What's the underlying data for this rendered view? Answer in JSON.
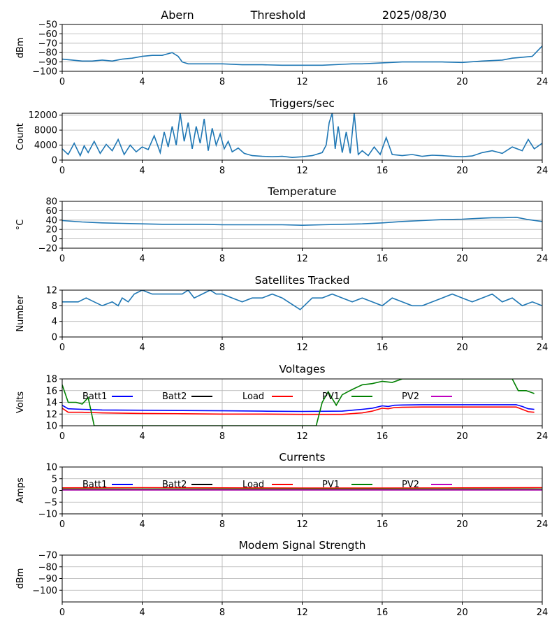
{
  "header": {
    "station": "Abern",
    "label": "Threshold",
    "date": "2025/08/30"
  },
  "chart_data": [
    {
      "type": "line",
      "title": "",
      "ylabel": "dBm",
      "xlim": [
        0,
        24
      ],
      "xticks": [
        0,
        4,
        8,
        12,
        16,
        20,
        24
      ],
      "ylim": [
        -100,
        -50
      ],
      "yticks": [
        -100,
        -90,
        -80,
        -70,
        -60,
        -50
      ],
      "grid": true,
      "series": [
        {
          "name": "",
          "color": "#1f77b4",
          "x": [
            0,
            0.5,
            1,
            1.5,
            2,
            2.5,
            3,
            3.5,
            4,
            4.5,
            5,
            5.5,
            5.8,
            6,
            6.3,
            7,
            7.5,
            8,
            9,
            10,
            11,
            12,
            13,
            14,
            14.5,
            15,
            16,
            17,
            18,
            19,
            20,
            21,
            22,
            22.5,
            23,
            23.5,
            24
          ],
          "y": [
            -87,
            -88,
            -89,
            -89,
            -88,
            -89,
            -87,
            -86,
            -84,
            -83,
            -83,
            -80,
            -84,
            -90,
            -92,
            -92,
            -92,
            -92,
            -93,
            -93,
            -93.5,
            -93.5,
            -93.5,
            -92.5,
            -92,
            -92,
            -91,
            -90,
            -90,
            -90,
            -90.5,
            -89,
            -88,
            -86,
            -85,
            -84,
            -73
          ]
        }
      ]
    },
    {
      "type": "line",
      "title": "Triggers/sec",
      "ylabel": "Count",
      "xlim": [
        0,
        24
      ],
      "xticks": [
        0,
        4,
        8,
        12,
        16,
        20,
        24
      ],
      "ylim": [
        0,
        12500
      ],
      "yticks": [
        0,
        4000,
        8000,
        12000
      ],
      "grid": true,
      "series": [
        {
          "name": "",
          "color": "#1f77b4",
          "x": [
            0,
            0.3,
            0.6,
            0.9,
            1.1,
            1.3,
            1.6,
            1.9,
            2.2,
            2.5,
            2.8,
            3.1,
            3.4,
            3.7,
            4,
            4.3,
            4.6,
            4.9,
            5.1,
            5.3,
            5.5,
            5.7,
            5.9,
            6.1,
            6.3,
            6.5,
            6.7,
            6.9,
            7.1,
            7.3,
            7.5,
            7.7,
            7.9,
            8.1,
            8.3,
            8.5,
            8.8,
            9.1,
            9.5,
            10,
            10.5,
            11,
            11.5,
            12,
            12.5,
            13,
            13.2,
            13.35,
            13.5,
            13.65,
            13.8,
            14,
            14.2,
            14.4,
            14.6,
            14.8,
            15,
            15.3,
            15.6,
            15.9,
            16.2,
            16.5,
            17,
            17.5,
            18,
            18.5,
            19,
            19.5,
            20,
            20.5,
            21,
            21.5,
            22,
            22.5,
            23,
            23.3,
            23.6,
            24
          ],
          "y": [
            3000,
            1500,
            4500,
            1200,
            3800,
            2000,
            5000,
            1800,
            4200,
            2500,
            5500,
            1500,
            4000,
            2200,
            3500,
            2800,
            6500,
            2000,
            7500,
            3500,
            9000,
            4000,
            12500,
            5000,
            10000,
            3000,
            9000,
            4500,
            11000,
            2500,
            8500,
            4000,
            7000,
            3000,
            5000,
            2200,
            3200,
            1800,
            1200,
            1000,
            900,
            1000,
            700,
            900,
            1200,
            2000,
            4000,
            10000,
            12500,
            3000,
            9000,
            2000,
            7500,
            1800,
            12500,
            1500,
            2500,
            1200,
            3500,
            1500,
            6000,
            1500,
            1200,
            1500,
            1000,
            1300,
            1200,
            1000,
            900,
            1100,
            2000,
            2500,
            1800,
            3500,
            2500,
            5500,
            3000,
            4500
          ]
        }
      ]
    },
    {
      "type": "line",
      "title": "Temperature",
      "ylabel": "°C",
      "xlim": [
        0,
        24
      ],
      "xticks": [
        0,
        4,
        8,
        12,
        16,
        20,
        24
      ],
      "ylim": [
        -20,
        80
      ],
      "yticks": [
        -20,
        0,
        20,
        40,
        60,
        80
      ],
      "grid": true,
      "series": [
        {
          "name": "",
          "color": "#1f77b4",
          "x": [
            0,
            1,
            2,
            3,
            4,
            5,
            6,
            7,
            8,
            9,
            10,
            11,
            12,
            13,
            14,
            15,
            16,
            17,
            18,
            19,
            20,
            21,
            21.5,
            22,
            22.7,
            23.3,
            24
          ],
          "y": [
            39,
            36,
            34,
            33,
            32,
            31,
            31,
            31,
            30,
            30,
            30,
            30,
            29,
            30,
            31,
            32,
            34,
            37,
            39,
            41,
            42,
            44,
            45,
            45,
            46,
            41,
            37
          ]
        }
      ]
    },
    {
      "type": "line",
      "title": "Satellites Tracked",
      "ylabel": "Number",
      "xlim": [
        0,
        24
      ],
      "xticks": [
        0,
        4,
        8,
        12,
        16,
        20,
        24
      ],
      "ylim": [
        0,
        12
      ],
      "yticks": [
        0,
        4,
        8,
        12
      ],
      "grid": true,
      "series": [
        {
          "name": "",
          "color": "#1f77b4",
          "x": [
            0,
            0.8,
            1.2,
            1.6,
            2,
            2.5,
            2.8,
            3,
            3.3,
            3.6,
            4,
            4.5,
            5,
            5.5,
            6,
            6.3,
            6.6,
            7,
            7.4,
            7.7,
            8,
            8.5,
            9,
            9.5,
            10,
            10.5,
            11,
            11.3,
            11.6,
            11.9,
            12.1,
            12.5,
            13,
            13.5,
            14,
            14.5,
            15,
            15.5,
            16,
            16.5,
            17,
            17.5,
            18,
            18.5,
            19,
            19.5,
            20,
            20.5,
            21,
            21.5,
            22,
            22.5,
            23,
            23.5,
            24
          ],
          "y": [
            9,
            9,
            10,
            9,
            8,
            9,
            8,
            10,
            9,
            11,
            12,
            11,
            11,
            11,
            11,
            12,
            10,
            11,
            12,
            11,
            11,
            10,
            9,
            10,
            10,
            11,
            10,
            9,
            8,
            7,
            8,
            10,
            10,
            11,
            10,
            9,
            10,
            9,
            8,
            10,
            9,
            8,
            8,
            9,
            10,
            11,
            10,
            9,
            10,
            11,
            9,
            10,
            8,
            9,
            8
          ]
        }
      ]
    },
    {
      "type": "line",
      "title": "Voltages",
      "ylabel": "Volts",
      "xlim": [
        0,
        24
      ],
      "xticks": [
        0,
        4,
        8,
        12,
        16,
        20,
        24
      ],
      "ylim": [
        10,
        18
      ],
      "yticks": [
        10,
        12,
        14,
        16,
        18
      ],
      "grid": true,
      "series": [
        {
          "name": "Batt1",
          "color": "#0000ff",
          "x": [
            0,
            0.3,
            1,
            2,
            4,
            6,
            8,
            10,
            12,
            14,
            15,
            15.5,
            16,
            16.3,
            16.6,
            17,
            18,
            20,
            22,
            22.7,
            23,
            23.3,
            23.6
          ],
          "y": [
            13.5,
            12.9,
            12.8,
            12.7,
            12.65,
            12.6,
            12.55,
            12.5,
            12.45,
            12.5,
            12.8,
            13,
            13.4,
            13.3,
            13.5,
            13.55,
            13.6,
            13.6,
            13.6,
            13.6,
            13.3,
            12.9,
            12.8
          ]
        },
        {
          "name": "Batt2",
          "color": "#000000",
          "x": [],
          "y": []
        },
        {
          "name": "Load",
          "color": "#ff0000",
          "x": [
            0,
            0.3,
            1,
            2,
            4,
            6,
            8,
            10,
            12,
            14,
            15,
            15.5,
            16,
            16.3,
            16.6,
            17,
            18,
            20,
            22,
            22.7,
            23,
            23.3,
            23.6
          ],
          "y": [
            13,
            12.3,
            12.3,
            12.2,
            12.1,
            12.05,
            12,
            12,
            11.95,
            11.95,
            12.2,
            12.5,
            13,
            12.9,
            13.1,
            13.15,
            13.2,
            13.2,
            13.2,
            13.2,
            12.8,
            12.4,
            12.3
          ]
        },
        {
          "name": "PV1",
          "color": "#008000",
          "x": [
            0,
            0.3,
            0.7,
            1,
            1.3,
            1.6,
            12.7,
            13,
            13.3,
            13.7,
            14,
            14.5,
            15,
            15.5,
            16,
            16.5,
            17,
            18,
            19,
            20,
            21,
            22,
            22.5,
            22.8,
            23.2,
            23.6
          ],
          "y": [
            17,
            14,
            14,
            13.7,
            14.8,
            10,
            10,
            14,
            15.8,
            13.5,
            15.3,
            16.2,
            17,
            17.2,
            17.6,
            17.4,
            18,
            18,
            18,
            18,
            18,
            18,
            18,
            16,
            16,
            15.5
          ]
        },
        {
          "name": "PV2",
          "color": "#bf00bf",
          "x": [],
          "y": []
        }
      ]
    },
    {
      "type": "line",
      "title": "Currents",
      "ylabel": "Amps",
      "xlim": [
        0,
        24
      ],
      "xticks": [
        0,
        4,
        8,
        12,
        16,
        20,
        24
      ],
      "ylim": [
        -10,
        10
      ],
      "yticks": [
        -10,
        -5,
        0,
        5,
        10
      ],
      "grid": true,
      "series": [
        {
          "name": "Batt1",
          "color": "#0000ff",
          "x": [
            0,
            24
          ],
          "y": [
            0.5,
            0.5
          ]
        },
        {
          "name": "Batt2",
          "color": "#000000",
          "x": [],
          "y": []
        },
        {
          "name": "Load",
          "color": "#ff0000",
          "x": [
            0,
            4,
            8,
            12,
            16,
            20,
            24
          ],
          "y": [
            1.1,
            1.2,
            1.1,
            1,
            1,
            1.1,
            1.2
          ]
        },
        {
          "name": "PV1",
          "color": "#008000",
          "x": [
            0,
            24
          ],
          "y": [
            0.6,
            0.6
          ]
        },
        {
          "name": "PV2",
          "color": "#bf00bf",
          "x": [
            0,
            24
          ],
          "y": [
            0.2,
            0.2
          ]
        }
      ]
    },
    {
      "type": "line",
      "title": "Modem Signal Strength",
      "ylabel": "dBm",
      "xlim": [
        0,
        24
      ],
      "xticks": [
        0,
        4,
        8,
        12,
        16,
        20,
        24
      ],
      "ylim": [
        -110,
        -70
      ],
      "yticks": [
        -100,
        -90,
        -80,
        -70
      ],
      "grid": true,
      "series": []
    }
  ]
}
